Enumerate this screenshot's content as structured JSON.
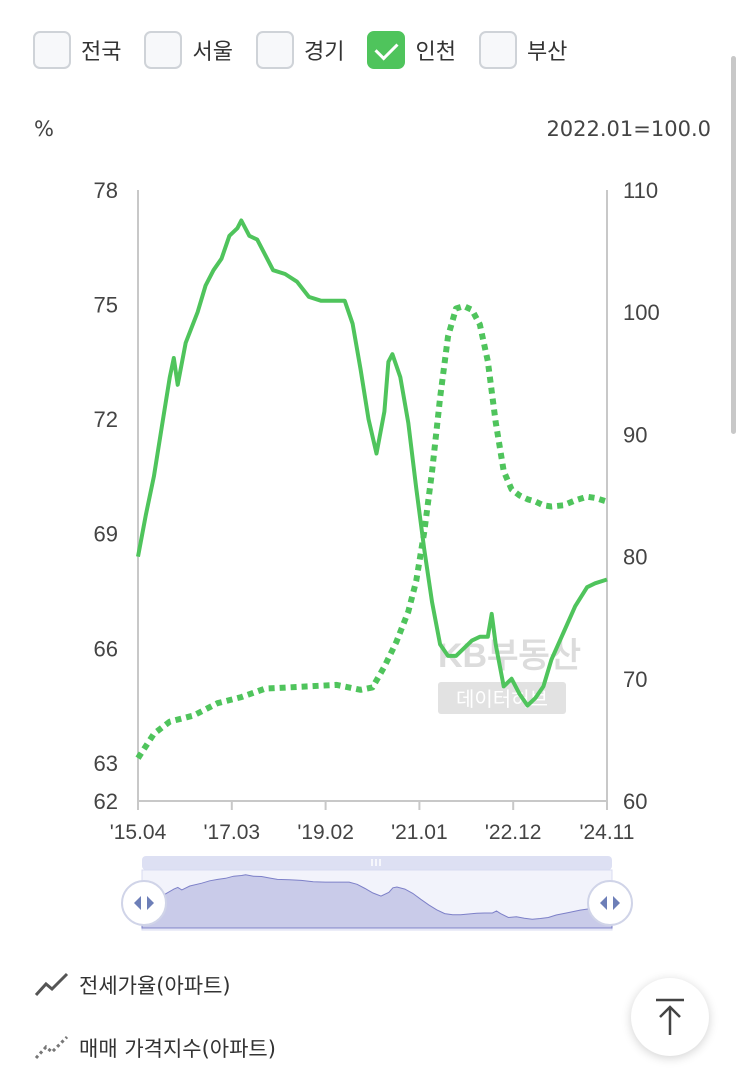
{
  "filters": [
    {
      "label": "전국",
      "checked": false
    },
    {
      "label": "서울",
      "checked": false
    },
    {
      "label": "경기",
      "checked": false
    },
    {
      "label": "인천",
      "checked": true
    },
    {
      "label": "부산",
      "checked": false
    }
  ],
  "unit_left": "%",
  "unit_right": "2022.01=100.0",
  "watermark": {
    "line1": "KB부동산",
    "line2": "데이터허브"
  },
  "legend": {
    "jeonse": "전세가율(아파트)",
    "price": "매매 가격지수(아파트)"
  },
  "colors": {
    "accent": "#4fc45c",
    "axis": "#c8c8c8",
    "navigator": "#c9cbe9"
  },
  "chart_data": {
    "type": "line",
    "y_left": {
      "ticks": [
        "78",
        "75",
        "72",
        "69",
        "66",
        "63",
        "62"
      ],
      "ylim": [
        62,
        78
      ]
    },
    "y_right": {
      "ticks": [
        "110",
        "100",
        "90",
        "80",
        "70",
        "60"
      ],
      "ylim": [
        60,
        110
      ]
    },
    "x_ticks": [
      "'15.04",
      "'17.03",
      "'19.02",
      "'21.01",
      "'22.12",
      "'24.11"
    ],
    "xlim": [
      "2015-04",
      "2025-02"
    ],
    "series": [
      {
        "name": "전세가율(아파트)",
        "axis": "left",
        "style": "solid",
        "points": [
          [
            "2015-04",
            68.4
          ],
          [
            "2015-06",
            69.5
          ],
          [
            "2015-08",
            70.5
          ],
          [
            "2015-10",
            71.8
          ],
          [
            "2015-12",
            73.1
          ],
          [
            "2016-01",
            73.6
          ],
          [
            "2016-02",
            72.9
          ],
          [
            "2016-04",
            74.0
          ],
          [
            "2016-07",
            74.8
          ],
          [
            "2016-09",
            75.5
          ],
          [
            "2016-11",
            75.9
          ],
          [
            "2017-01",
            76.2
          ],
          [
            "2017-03",
            76.8
          ],
          [
            "2017-05",
            77.0
          ],
          [
            "2017-06",
            77.2
          ],
          [
            "2017-08",
            76.8
          ],
          [
            "2017-10",
            76.7
          ],
          [
            "2017-12",
            76.3
          ],
          [
            "2018-02",
            75.9
          ],
          [
            "2018-05",
            75.8
          ],
          [
            "2018-08",
            75.6
          ],
          [
            "2018-11",
            75.2
          ],
          [
            "2019-02",
            75.1
          ],
          [
            "2019-05",
            75.1
          ],
          [
            "2019-08",
            75.1
          ],
          [
            "2019-10",
            74.5
          ],
          [
            "2019-12",
            73.3
          ],
          [
            "2020-02",
            72.0
          ],
          [
            "2020-04",
            71.1
          ],
          [
            "2020-06",
            72.2
          ],
          [
            "2020-07",
            73.5
          ],
          [
            "2020-08",
            73.7
          ],
          [
            "2020-10",
            73.1
          ],
          [
            "2020-12",
            71.9
          ],
          [
            "2021-02",
            70.2
          ],
          [
            "2021-04",
            68.6
          ],
          [
            "2021-06",
            67.2
          ],
          [
            "2021-08",
            66.1
          ],
          [
            "2021-10",
            65.8
          ],
          [
            "2021-12",
            65.8
          ],
          [
            "2022-02",
            66.0
          ],
          [
            "2022-04",
            66.2
          ],
          [
            "2022-06",
            66.3
          ],
          [
            "2022-08",
            66.3
          ],
          [
            "2022-09",
            66.9
          ],
          [
            "2022-10",
            66.1
          ],
          [
            "2022-12",
            65.0
          ],
          [
            "2023-02",
            65.2
          ],
          [
            "2023-04",
            64.8
          ],
          [
            "2023-06",
            64.5
          ],
          [
            "2023-08",
            64.7
          ],
          [
            "2023-10",
            65.0
          ],
          [
            "2023-12",
            65.7
          ],
          [
            "2024-03",
            66.4
          ],
          [
            "2024-06",
            67.1
          ],
          [
            "2024-09",
            67.6
          ],
          [
            "2024-11",
            67.7
          ],
          [
            "2025-02",
            67.8
          ]
        ]
      },
      {
        "name": "매매 가격지수(아파트)",
        "axis": "right",
        "style": "dotted",
        "points": [
          [
            "2015-04",
            63.5
          ],
          [
            "2015-08",
            65.5
          ],
          [
            "2015-12",
            66.5
          ],
          [
            "2016-06",
            67.0
          ],
          [
            "2016-12",
            68.0
          ],
          [
            "2017-06",
            68.5
          ],
          [
            "2017-12",
            69.2
          ],
          [
            "2018-06",
            69.3
          ],
          [
            "2018-12",
            69.4
          ],
          [
            "2019-06",
            69.5
          ],
          [
            "2019-12",
            69.1
          ],
          [
            "2020-03",
            69.3
          ],
          [
            "2020-06",
            71.0
          ],
          [
            "2020-09",
            73.0
          ],
          [
            "2020-12",
            75.5
          ],
          [
            "2021-02",
            78.0
          ],
          [
            "2021-04",
            82.0
          ],
          [
            "2021-06",
            87.0
          ],
          [
            "2021-08",
            93.0
          ],
          [
            "2021-10",
            98.0
          ],
          [
            "2021-12",
            100.3
          ],
          [
            "2022-02",
            100.5
          ],
          [
            "2022-04",
            100.2
          ],
          [
            "2022-06",
            99.0
          ],
          [
            "2022-08",
            96.0
          ],
          [
            "2022-10",
            91.0
          ],
          [
            "2022-12",
            87.0
          ],
          [
            "2023-02",
            85.5
          ],
          [
            "2023-04",
            85.0
          ],
          [
            "2023-06",
            84.7
          ],
          [
            "2023-08",
            84.5
          ],
          [
            "2023-10",
            84.2
          ],
          [
            "2023-12",
            84.1
          ],
          [
            "2024-03",
            84.2
          ],
          [
            "2024-06",
            84.6
          ],
          [
            "2024-09",
            84.9
          ],
          [
            "2024-11",
            84.8
          ],
          [
            "2025-02",
            84.5
          ]
        ]
      }
    ],
    "grid": false
  }
}
